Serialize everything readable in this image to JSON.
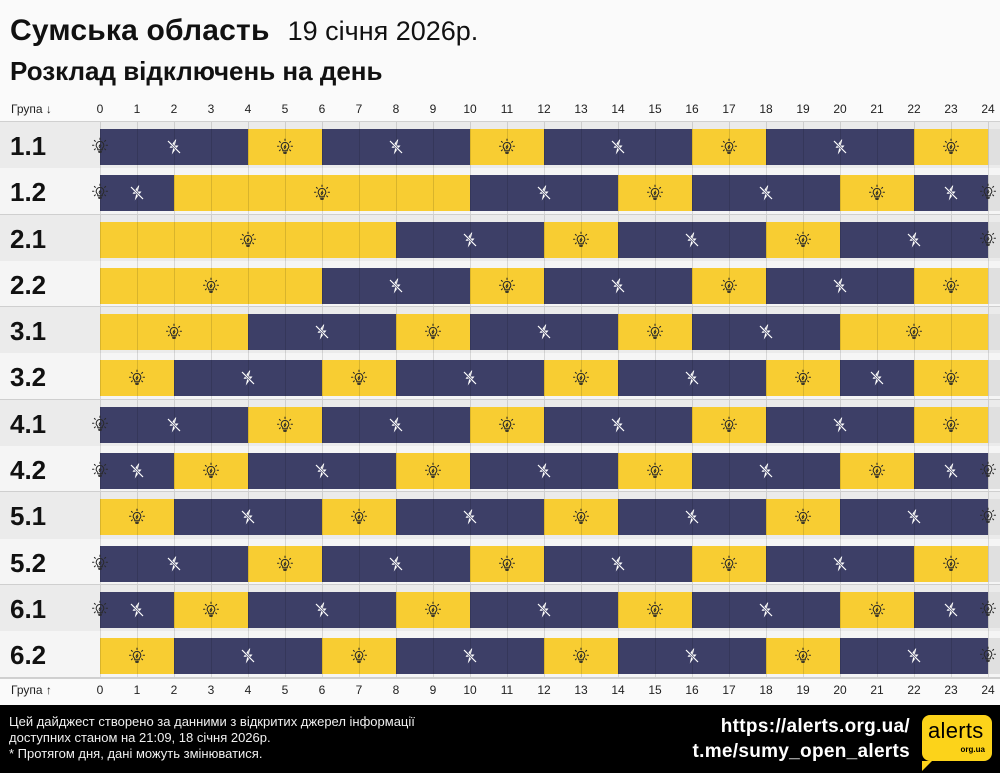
{
  "header": {
    "region": "Сумська область",
    "date": "19 січня 2026р.",
    "subtitle": "Розклад відключень на день"
  },
  "axis": {
    "top_group_label": "Група ↓",
    "bottom_group_label": "Група ↑",
    "ticks": [
      "0",
      "1",
      "2",
      "3",
      "4",
      "5",
      "6",
      "7",
      "8",
      "9",
      "10",
      "11",
      "12",
      "13",
      "14",
      "15",
      "16",
      "17",
      "18",
      "19",
      "20",
      "21",
      "22",
      "23",
      "24"
    ]
  },
  "colors": {
    "power_on": "#f8cd32",
    "power_off": "#3d3f67",
    "footer_bg": "#000000",
    "logo": "#fcd31a"
  },
  "legend": {
    "on_icon": "lightbulb-icon",
    "off_icon": "no-power-icon"
  },
  "chart_data": {
    "type": "table",
    "title": "Розклад відключень на день",
    "xlabel": "hour",
    "xlim": [
      0,
      24
    ],
    "states": {
      "on": "power available",
      "off": "outage"
    },
    "groups": [
      {
        "name": "1.1",
        "segments": [
          [
            "off",
            0,
            4
          ],
          [
            "on",
            4,
            6
          ],
          [
            "off",
            6,
            10
          ],
          [
            "on",
            10,
            12
          ],
          [
            "off",
            12,
            16
          ],
          [
            "on",
            16,
            18
          ],
          [
            "off",
            18,
            22
          ],
          [
            "on",
            22,
            24
          ]
        ],
        "start_marker": true,
        "end_marker": false
      },
      {
        "name": "1.2",
        "segments": [
          [
            "off",
            0,
            2
          ],
          [
            "on",
            2,
            10
          ],
          [
            "off",
            10,
            14
          ],
          [
            "on",
            14,
            16
          ],
          [
            "off",
            16,
            20
          ],
          [
            "on",
            20,
            22
          ],
          [
            "off",
            22,
            24
          ]
        ],
        "start_marker": true,
        "end_marker": true
      },
      {
        "name": "2.1",
        "segments": [
          [
            "on",
            0,
            8
          ],
          [
            "off",
            8,
            12
          ],
          [
            "on",
            12,
            14
          ],
          [
            "off",
            14,
            18
          ],
          [
            "on",
            18,
            20
          ],
          [
            "off",
            20,
            24
          ]
        ],
        "start_marker": false,
        "end_marker": true
      },
      {
        "name": "2.2",
        "segments": [
          [
            "on",
            0,
            6
          ],
          [
            "off",
            6,
            10
          ],
          [
            "on",
            10,
            12
          ],
          [
            "off",
            12,
            16
          ],
          [
            "on",
            16,
            18
          ],
          [
            "off",
            18,
            22
          ],
          [
            "on",
            22,
            24
          ]
        ],
        "start_marker": false,
        "end_marker": false
      },
      {
        "name": "3.1",
        "segments": [
          [
            "on",
            0,
            4
          ],
          [
            "off",
            4,
            8
          ],
          [
            "on",
            8,
            10
          ],
          [
            "off",
            10,
            14
          ],
          [
            "on",
            14,
            16
          ],
          [
            "off",
            16,
            20
          ],
          [
            "on",
            20,
            24
          ]
        ],
        "start_marker": false,
        "end_marker": false
      },
      {
        "name": "3.2",
        "segments": [
          [
            "on",
            0,
            2
          ],
          [
            "off",
            2,
            6
          ],
          [
            "on",
            6,
            8
          ],
          [
            "off",
            8,
            12
          ],
          [
            "on",
            12,
            14
          ],
          [
            "off",
            14,
            18
          ],
          [
            "on",
            18,
            20
          ],
          [
            "off",
            20,
            22
          ],
          [
            "on",
            22,
            24
          ]
        ],
        "start_marker": false,
        "end_marker": false
      },
      {
        "name": "4.1",
        "segments": [
          [
            "off",
            0,
            4
          ],
          [
            "on",
            4,
            6
          ],
          [
            "off",
            6,
            10
          ],
          [
            "on",
            10,
            12
          ],
          [
            "off",
            12,
            16
          ],
          [
            "on",
            16,
            18
          ],
          [
            "off",
            18,
            22
          ],
          [
            "on",
            22,
            24
          ]
        ],
        "start_marker": true,
        "end_marker": false
      },
      {
        "name": "4.2",
        "segments": [
          [
            "off",
            0,
            2
          ],
          [
            "on",
            2,
            4
          ],
          [
            "off",
            4,
            8
          ],
          [
            "on",
            8,
            10
          ],
          [
            "off",
            10,
            14
          ],
          [
            "on",
            14,
            16
          ],
          [
            "off",
            16,
            20
          ],
          [
            "on",
            20,
            22
          ],
          [
            "off",
            22,
            24
          ]
        ],
        "start_marker": true,
        "end_marker": true
      },
      {
        "name": "5.1",
        "segments": [
          [
            "on",
            0,
            2
          ],
          [
            "off",
            2,
            6
          ],
          [
            "on",
            6,
            8
          ],
          [
            "off",
            8,
            12
          ],
          [
            "on",
            12,
            14
          ],
          [
            "off",
            14,
            18
          ],
          [
            "on",
            18,
            20
          ],
          [
            "off",
            20,
            24
          ]
        ],
        "start_marker": false,
        "end_marker": true
      },
      {
        "name": "5.2",
        "segments": [
          [
            "off",
            0,
            4
          ],
          [
            "on",
            4,
            6
          ],
          [
            "off",
            6,
            10
          ],
          [
            "on",
            10,
            12
          ],
          [
            "off",
            12,
            16
          ],
          [
            "on",
            16,
            18
          ],
          [
            "off",
            18,
            22
          ],
          [
            "on",
            22,
            24
          ]
        ],
        "start_marker": true,
        "end_marker": false
      },
      {
        "name": "6.1",
        "segments": [
          [
            "off",
            0,
            2
          ],
          [
            "on",
            2,
            4
          ],
          [
            "off",
            4,
            8
          ],
          [
            "on",
            8,
            10
          ],
          [
            "off",
            10,
            14
          ],
          [
            "on",
            14,
            16
          ],
          [
            "off",
            16,
            20
          ],
          [
            "on",
            20,
            22
          ],
          [
            "off",
            22,
            24
          ]
        ],
        "start_marker": true,
        "end_marker": true
      },
      {
        "name": "6.2",
        "segments": [
          [
            "on",
            0,
            2
          ],
          [
            "off",
            2,
            6
          ],
          [
            "on",
            6,
            8
          ],
          [
            "off",
            8,
            12
          ],
          [
            "on",
            12,
            14
          ],
          [
            "off",
            14,
            18
          ],
          [
            "on",
            18,
            20
          ],
          [
            "off",
            20,
            24
          ]
        ],
        "start_marker": false,
        "end_marker": true
      }
    ]
  },
  "footer": {
    "line1": "Цей дайджест створено за данними з відкритих джерел інформації",
    "line2": "доступних станом на 21:09, 18 січня 2026р.",
    "line3": "* Протягом дня, дані можуть змінюватися.",
    "link1": "https://alerts.org.ua/",
    "link2": "t.me/sumy_open_alerts",
    "logo_main": "alerts",
    "logo_sub": "org.ua"
  }
}
